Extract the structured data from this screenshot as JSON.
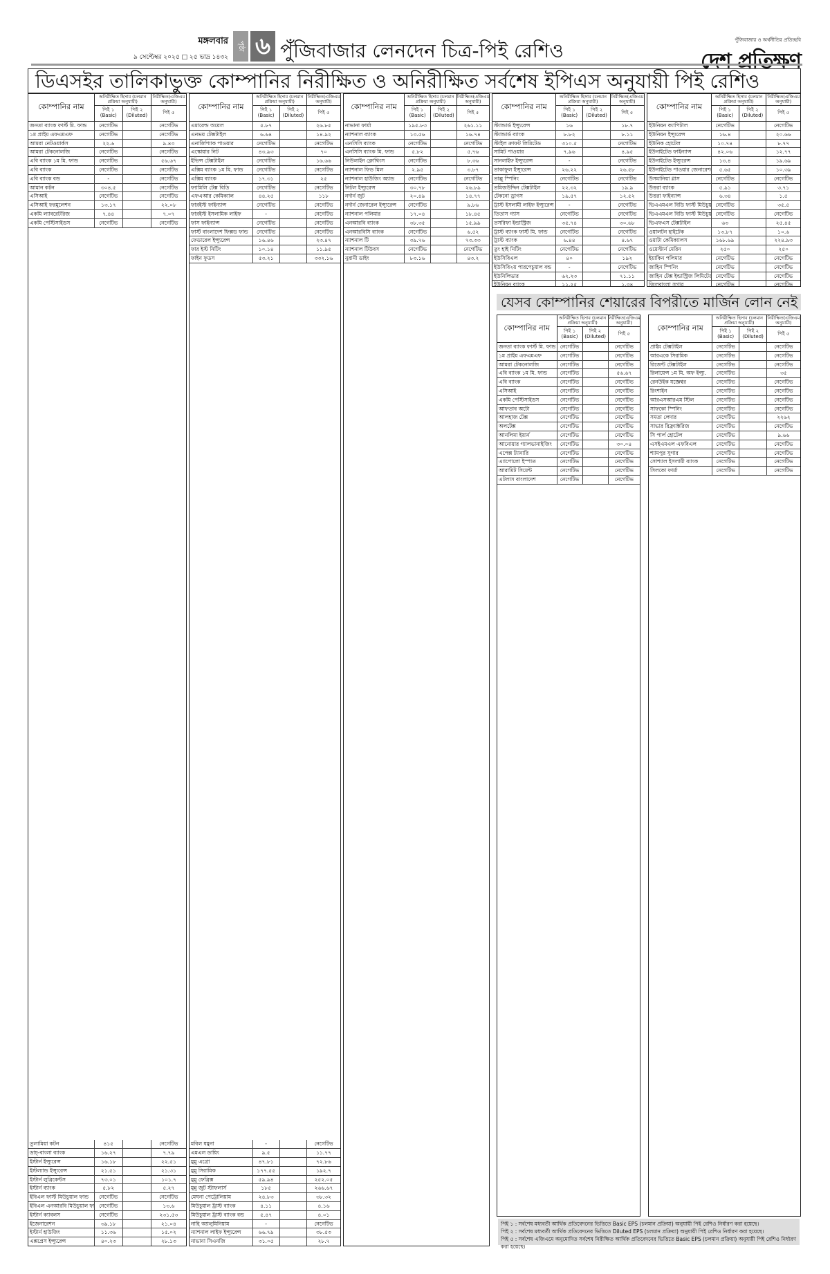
{
  "header": {
    "weekday": "মঙ্গলবার",
    "date": "৯ সেপ্টেম্বর ২০২৫ □ ২৫ ভাদ্র ১৪৩২",
    "page_label": "পৃষ্ঠা",
    "page_number": "৬",
    "page_title": "পুঁজিবাজার লেনদেন চিত্র-পিই রেশিও",
    "logo_tagline": "পুঁজিবাজার ও অর্থনীতির প্রতিচ্ছবি",
    "logo_name": "দেশ প্রতিক্ষণ"
  },
  "main_title": "ডিএসইর তালিকাভুক্ত কোম্পানির নিরীক্ষিত ও অনিরীক্ষিত সর্বশেষ ইপিএস অনুযায়ী পিই রেশিও",
  "section2_title": "যেসব কোম্পানির শেয়ারের বিপরীতে মার্জিন লোন নেই",
  "table_header": {
    "name": "কোম্পানির নাম",
    "unaudited": "অনিরীক্ষিত হিসাব (চলমান প্রক্রিয়া অনুযায়ী)",
    "audited": "নিরীক্ষিত(এজিএম অনুযায়ী)",
    "pe1": "পিই ১ (Basic)",
    "pe2": "পিই ২ (Diluted)",
    "pe5": "পিই ৫"
  },
  "tables": [
    {
      "rows": [
        [
          "জনতা ব্যাংক ফার্স্ট মি. ফান্ড",
          "নেগেটিভ",
          "",
          "নেগেটিভ"
        ],
        [
          "১ম প্রাইম এফএমএফ",
          "নেগেটিভ",
          "",
          "নেগেটিভ"
        ],
        [
          "আমরা নেটওয়ার্কস",
          "২২.৬",
          "",
          "৯.৪৩"
        ],
        [
          "আমরা টেকনোলজি",
          "নেগেটিভ",
          "",
          "নেগেটিভ"
        ],
        [
          "এবি ব্যাংক ১ম মি. ফান্ড",
          "নেগেটিভ",
          "",
          "৫৬.৬৭"
        ],
        [
          "এবি ব্যাংক",
          "নেগেটিভ",
          "",
          "নেগেটিভ"
        ],
        [
          "এবি ব্যাংক বন্ড",
          "-",
          "",
          "নেগেটিভ"
        ],
        [
          "আমান কটন",
          "৩০৪.৫",
          "",
          "নেগেটিভ"
        ],
        [
          "এসিআই",
          "নেগেটিভ",
          "",
          "নেগেটিভ"
        ],
        [
          "এসিআই ফরমুলেশন",
          "১৩.১৭",
          "",
          "২২.০৮"
        ],
        [
          "একমি ল্যাবরেটরিজ",
          "৭.৪৪",
          "",
          "৭.০৭"
        ],
        [
          "একমি পেস্টিসাইডস",
          "নেগেটিভ",
          "",
          "নেগেটিভ"
        ]
      ],
      "tail": [
        [
          "তুলামিয়া কটন",
          "৪১৫",
          "",
          "নেগেটিভ"
        ],
        [
          "ডাচ্-বাংলা ব্যাংক",
          "১৬.২৭",
          "",
          "৭.৭৯"
        ],
        [
          "ইস্টার্ন ইন্স্যুরেন্স",
          "১৬.১৮",
          "",
          "২২.৫১"
        ],
        [
          "ইস্টল্যান্ড ইন্স্যুরেন্স",
          "২১.৫১",
          "",
          "২১.৩১"
        ],
        [
          "ইস্টার্ন লুব্রিকেন্টস",
          "৭৩.০১",
          "",
          "১০১.৭"
        ],
        [
          "ইস্টার্ন ব্যাংক",
          "৫.৮২",
          "",
          "৫.২৭"
        ],
        [
          "ইবিএল ফার্স্ট মিউচুয়াল ফান্ড",
          "নেগেটিভ",
          "",
          "নেগেটিভ"
        ],
        [
          "ইবিএল এনআরবি মিউচুয়াল ফান্ড",
          "নেগেটিভ",
          "",
          "১৩.৬"
        ],
        [
          "ইস্টার্ন ক্যাবলস",
          "নেগেটিভ",
          "",
          "২৩১.৫৩"
        ],
        [
          "ইজেনারেশন",
          "৩৯.১৮",
          "",
          "২১.০৪"
        ],
        [
          "ইস্টার্ন হাউজিং",
          "১১.৩৬",
          "",
          "১৫.০২"
        ],
        [
          "এক্সপ্রেস ইন্স্যুরেন্স",
          "৪০.২৩",
          "",
          "২৮.১৩"
        ]
      ]
    },
    {
      "rows": [
        [
          "এমারেল্ড অয়েল",
          "৫.৮৭",
          "",
          "২৬.৮৫"
        ],
        [
          "এনভয় টেক্সটাইল",
          "৬.৬৪",
          "",
          "১৪.৯২"
        ],
        [
          "এনার্জিপ্যাক পাওয়ার",
          "নেগেটিভ",
          "",
          "নেগেটিভ"
        ],
        [
          "এস্কোয়ার নিট",
          "৪৩.৯৩",
          "",
          "৭০"
        ],
        [
          "ইভিন্স টেক্সটাইল",
          "নেগেটিভ",
          "",
          "১৬.৬৬"
        ],
        [
          "এক্সিম ব্যাংক ১ম মি. ফান্ড",
          "নেগেটিভ",
          "",
          "নেগেটিভ"
        ],
        [
          "এক্সিম ব্যাংক",
          "১৭.৩১",
          "",
          "২৫"
        ],
        [
          "ফ্যামিলি টেক্স বিডি",
          "নেগেটিভ",
          "",
          "নেগেটিভ"
        ],
        [
          "এফএআর কেমিক্যাল",
          "৪৪.২৫",
          "",
          "১১৮"
        ],
        [
          "ফারইস্ট ফাইন্যান্স",
          "নেগেটিভ",
          "",
          "নেগেটিভ"
        ],
        [
          "ফারইস্ট ইসলামিক লাইফ",
          "-",
          "",
          "নেগেটিভ"
        ],
        [
          "ফাস ফাইন্যান্স",
          "নেগেটিভ",
          "",
          "নেগেটিভ"
        ],
        [
          "ফার্স্ট বাংলাদেশ ফিক্সড ফান্ড",
          "নেগেটিভ",
          "",
          "নেগেটিভ"
        ],
        [
          "ফেডারেল ইন্স্যুরেন্স",
          "১৬.৪৬",
          "",
          "২৩.৪৭"
        ],
        [
          "ফার ইস্ট নিটিং",
          "১০.১৪",
          "",
          "১১.৯৫"
        ],
        [
          "ফাইন ফুডস",
          "৫৩.২১",
          "",
          "৩৩২.১৬"
        ]
      ],
      "tail": [
        [
          "মবিল যমুনা",
          "-",
          "",
          "নেগেটিভ"
        ],
        [
          "এমএল ডায়িং",
          "৯.৫",
          "",
          "১১.৭৭"
        ],
        [
          "মুন্নু এগ্রো",
          "৪৭.৮১",
          "",
          "৭২.৮৬"
        ],
        [
          "মুন্নু সিরামিক",
          "১৭৭.৫৫",
          "",
          "১৯২.৭"
        ],
        [
          "মুন্নু ফেব্রিক্স",
          "৫৯.৯৪",
          "",
          "২৫২.০৫"
        ],
        [
          "মুন্নু জুট স্টাফলার্স",
          "১৮৫",
          "",
          "২৬৬.৬৭"
        ],
        [
          "মেঘনা পেট্রোলিয়াম",
          "২৪.৮৩",
          "",
          "৩৮.৩২"
        ],
        [
          "মিউচুয়াল ট্রাস্ট ব্যাংক",
          "৪.১১",
          "",
          "৪.১৬"
        ],
        [
          "মিউচুয়াল ট্রাস্ট ব্যাংক বন্ড",
          "৫.৪৭",
          "",
          "৪.০১"
        ],
        [
          "নাহি অ্যালুমিনিয়াম",
          "-",
          "",
          "নেগেটিভ"
        ],
        [
          "ন্যাশনাল লাইফ ইন্স্যুরেন্স",
          "৬৬.৭৯",
          "",
          "৩৮.৫৩"
        ],
        [
          "নাভানা সিএনজি",
          "৩১.০৫",
          "",
          "২৮.৭"
        ]
      ]
    },
    {
      "rows": [
        [
          "নাভানা ফার্মা",
          "১৯৫.৮৩",
          "",
          "২৬১.১১"
        ],
        [
          "ন্যাশনাল ব্যাংক",
          "১৩.৫৬",
          "",
          "১৬.৭৪"
        ],
        [
          "এনসিসি ব্যাংক",
          "নেগেটিভ",
          "",
          "নেগেটিভ"
        ],
        [
          "এনসিসি ব্যাংক মি. ফান্ড",
          "৫.৮২",
          "",
          "৫.৭৬"
        ],
        [
          "নিউলাইন ক্লোথিংস",
          "নেগেটিভ",
          "",
          "৮.৩৬"
        ],
        [
          "ন্যাশনাল ফিড মিল",
          "২.৯৫",
          "",
          "৩.৮৭"
        ],
        [
          "ন্যাশনাল হাউজিং অ্যান্ড",
          "নেগেটিভ",
          "",
          "নেগেটিভ"
        ],
        [
          "নিটল ইন্স্যুরেন্স",
          "৩০.৭৮",
          "",
          "২৬.৮৯"
        ],
        [
          "নর্দার্ন জুট",
          "২০.৪৯",
          "",
          "১৪.৭৭"
        ],
        [
          "নর্দার্ন জেনারেল ইন্স্যুরেন্স",
          "নেগেটিভ",
          "",
          "৯.৮৬"
        ],
        [
          "ন্যাশনাল পলিমার",
          "১৭.০৪",
          "",
          "১৮.৪৫"
        ],
        [
          "এনআরবি ব্যাংক",
          "৩৮.৩৫",
          "",
          "১৫.৯৯"
        ],
        [
          "এনআরবিসি ব্যাংক",
          "নেগেটিভ",
          "",
          "৬.৫২"
        ],
        [
          "ন্যাশনাল টি",
          "৩৯.৭৬",
          "",
          "৭৩.৩৩"
        ],
        [
          "ন্যাশনাল টিউবস",
          "নেগেটিভ",
          "",
          "নেগেটিভ"
        ],
        [
          "নুরানী ডাইং",
          "৮৩.১৬",
          "",
          "৪৩.২"
        ]
      ],
      "tail": []
    },
    {
      "rows": [
        [
          "স্ট্যান্ডার্ড ইন্স্যুরেন্স",
          "১৬",
          "",
          "১৮.৭"
        ],
        [
          "স্ট্যান্ডার্ড ব্যাংক",
          "৮.৮২",
          "",
          "৮.১১"
        ],
        [
          "স্টাইল ক্রাফট লিমিটেড",
          "৩১০.৫",
          "",
          "নেগেটিভ"
        ],
        [
          "সামিট পাওয়ার",
          "৭.৯৬",
          "",
          "৪.৯৫"
        ],
        [
          "সানলাইফ ইন্স্যুরেন্স",
          "-",
          "",
          "নেগেটিভ"
        ],
        [
          "তাকাফুল ইন্স্যুরেন্স",
          "২৬.২২",
          "",
          "২৬.৫৮"
        ],
        [
          "তাল্লু স্পিনিং",
          "নেগেটিভ",
          "",
          "নেগেটিভ"
        ],
        [
          "তমিজউদ্দিন টেক্সটাইল",
          "২২.৩২",
          "",
          "১৯.৯"
        ],
        [
          "টেকনো ড্রাগস",
          "১৯.৫৭",
          "",
          "১২.৫২"
        ],
        [
          "ট্রাস্ট ইসলামী লাইফ ইন্স্যুরেন্স",
          "-",
          "",
          "নেগেটিভ"
        ],
        [
          "তিতাস গ্যাস",
          "নেগেটিভ",
          "",
          "নেগেটিভ"
        ],
        [
          "তসরিফা ইন্ডাস্ট্রিজ",
          "৩৫.৭৪",
          "",
          "৩০.৬৮"
        ],
        [
          "ট্রাস্ট ব্যাংক ফার্স্ট মি. ফান্ড",
          "নেগেটিভ",
          "",
          "নেগেটিভ"
        ],
        [
          "ট্রাস্ট ব্যাংক",
          "৬.৪৪",
          "",
          "৪.৬৭"
        ],
        [
          "তুং হাই নিটিং",
          "নেগেটিভ",
          "",
          "নেগেটিভ"
        ],
        [
          "ইউসিবিএল",
          "৪০",
          "",
          "১৯২"
        ],
        [
          "ইউসিবি২য় পারপেচুয়াল বন্ড",
          "-",
          "",
          "নেগেটিভ"
        ],
        [
          "ইউনিলিভার",
          "৬২.২৩",
          "",
          "৭১.১১"
        ],
        [
          "ইউনিয়ন ব্যাংক",
          "১১.২৫",
          "",
          "১.৩৪"
        ]
      ],
      "tail": []
    },
    {
      "rows": [
        [
          "ইউনিয়ন ক্যাপিটাল",
          "নেগেটিভ",
          "",
          "নেগেটিভ"
        ],
        [
          "ইউনিয়ন ইন্স্যুরেন্স",
          "১৬.৪",
          "",
          "২০.৬৬"
        ],
        [
          "ইউনিক হোটেল",
          "১০.৭৪",
          "",
          "৮.৭৭"
        ],
        [
          "ইউনাইটেড ফাইন্যান্স",
          "৪২.০৬",
          "",
          "১২.৭৭"
        ],
        [
          "ইউনাইটেড ইন্স্যুরেন্স",
          "১৩.৪",
          "",
          "১৯.৬৯"
        ],
        [
          "ইউনাইটেড পাওয়ার জেনারেশন",
          "৫.৬৫",
          "",
          "১০.৩৯"
        ],
        [
          "উসমানিয়া গ্লাস",
          "নেগেটিভ",
          "",
          "নেগেটিভ"
        ],
        [
          "উত্তরা ব্যাংক",
          "৫.৯১",
          "",
          "৩.৭১"
        ],
        [
          "উত্তরা ফাইন্যান্স",
          "৬.৩৪",
          "",
          "১.৫"
        ],
        [
          "ভিএএমএল বিডি ফার্স্ট মিউচুয়াল ১",
          "নেগেটিভ",
          "",
          "৩৫.৫"
        ],
        [
          "ভিএএমএল বিডি ফার্স্ট মিউচুয়াল ফান্ড",
          "নেগেটিভ",
          "",
          "নেগেটিভ"
        ],
        [
          "ভিএফএস টেক্সটাইল",
          "৬৩",
          "",
          "২৫.৪৫"
        ],
        [
          "ওয়ালটন হাইটেক",
          "১৩.৮৭",
          "",
          "১০.৬"
        ],
        [
          "ওয়াটা কেমিক্যালস",
          "১৬৮.৬৯",
          "",
          "২২৪.৯৩"
        ],
        [
          "ওয়েস্টার্ন মেরিন",
          "২৫০",
          "",
          "২৫০"
        ],
        [
          "ইয়াকিন পলিমার",
          "নেগেটিভ",
          "",
          "নেগেটিভ"
        ],
        [
          "জাহিন স্পিনিং",
          "নেগেটিভ",
          "",
          "নেগেটিভ"
        ],
        [
          "জাহিন টেক্স ইন্ডাস্ট্রিজ লিমিটেড",
          "নেগেটিভ",
          "",
          "নেগেটিভ"
        ],
        [
          "জিলবাংলা সুগার",
          "নেগেটিভ",
          "",
          "নেগেটিভ"
        ]
      ],
      "tail": []
    },
    {
      "rows": [
        [
          "জনতা ব্যাংক ফার্স্ট মি. ফান্ড",
          "নেগেটিভ",
          "",
          "নেগেটিভ"
        ],
        [
          "১ম প্রাইম এফএমএফ",
          "নেগেটিভ",
          "",
          "নেগেটিভ"
        ],
        [
          "আমরা টেকনোলজি",
          "নেগেটিভ",
          "",
          "নেগেটিভ"
        ],
        [
          "এবি ব্যাংক ১ম মি. ফান্ড",
          "নেগেটিভ",
          "",
          "৫৬.৬৭"
        ],
        [
          "এবি ব্যাংক",
          "নেগেটিভ",
          "",
          "নেগেটিভ"
        ],
        [
          "এসিআই",
          "নেগেটিভ",
          "",
          "নেগেটিভ"
        ],
        [
          "একমি পেস্টিসাইডস",
          "নেগেটিভ",
          "",
          "নেগেটিভ"
        ],
        [
          "আফতাব অটো",
          "নেগেটিভ",
          "",
          "নেগেটিভ"
        ],
        [
          "আলহাজ টেক্স",
          "নেগেটিভ",
          "",
          "নেগেটিভ"
        ],
        [
          "অলটেক্স",
          "নেগেটিভ",
          "",
          "নেগেটিভ"
        ],
        [
          "আনলিমা ইয়ার্ন",
          "নেগেটিভ",
          "",
          "নেগেটিভ"
        ],
        [
          "আনোয়ার গ্যালভানাইজিং",
          "নেগেটিভ",
          "",
          "৩০.০৪"
        ],
        [
          "এপেক্স ট্যানারি",
          "নেগেটিভ",
          "",
          "নেগেটিভ"
        ],
        [
          "এ্যাপোলো ইস্পাত",
          "নেগেটিভ",
          "",
          "নেগেটিভ"
        ],
        [
          "আরামিট সিমেন্ট",
          "নেগেটিভ",
          "",
          "নেগেটিভ"
        ],
        [
          "এটলাস বাংলাদেশ",
          "নেগেটিভ",
          "",
          "নেগেটিভ"
        ]
      ],
      "tail": []
    },
    {
      "rows": [
        [
          "প্রাইম টেক্সটাইল",
          "নেগেটিভ",
          "",
          "নেগেটিভ"
        ],
        [
          "আরএকে সিরামিক",
          "নেগেটিভ",
          "",
          "নেগেটিভ"
        ],
        [
          "রিজেন্ট টেক্সটাইল",
          "নেগেটিভ",
          "",
          "নেগেটিভ"
        ],
        [
          "রিলায়েন্স ১ম মি. অফ ইন্স্যু.",
          "নেগেটিভ",
          "",
          "৩৫"
        ],
        [
          "রেনউইক যজ্ঞেশ্বর",
          "নেগেটিভ",
          "",
          "নেগেটিভ"
        ],
        [
          "রিংশাইন",
          "নেগেটিভ",
          "",
          "নেগেটিভ"
        ],
        [
          "আরএসআরএম স্টিল",
          "নেগেটিভ",
          "",
          "নেগেটিভ"
        ],
        [
          "সাফকো স্পিনিং",
          "নেগেটিভ",
          "",
          "নেগেটিভ"
        ],
        [
          "সমতা লেদার",
          "নেগেটিভ",
          "",
          "২২৬২"
        ],
        [
          "সাভার রিফ্র্যাক্টরিজ",
          "নেগেটিভ",
          "",
          "নেগেটিভ"
        ],
        [
          "সি পার্ল হোটেল",
          "নেগেটিভ",
          "",
          "৯.৬৬"
        ],
        [
          "এসইএমএল এফবিএল",
          "নেগেটিভ",
          "",
          "নেগেটিভ"
        ],
        [
          "শ্যামপুর সুগার",
          "নেগেটিভ",
          "",
          "নেগেটিভ"
        ],
        [
          "সোশ্যাল ইসলামী ব্যাংক",
          "নেগেটিভ",
          "",
          "নেগেটিভ"
        ],
        [
          "সিলকো ফার্মা",
          "নেগেটিভ",
          "",
          "নেগেটিভ"
        ]
      ],
      "tail": []
    }
  ],
  "footnotes": [
    "পিই ১ : সর্বশেষ মধ্যবর্তী আর্থিক প্রতিবেদনের ভিত্তিতে Basic EPS (চলমান প্রক্রিয়া) অনুযায়ী পিই রেশিও নির্ধারণ করা হয়েছে।",
    "পিই ২ : সর্বশেষ মধ্যবর্তী আর্থিক প্রতিবেদনের ভিত্তিতে Diluted EPS (চলমান প্রক্রিয়া) অনুযায়ী পিই রেশিও নির্ধারণ করা হয়েছে।",
    "পিই ৫ : সর্বশেষ এজিএমে অনুমোদিত সর্বশেষ নিরীক্ষিত আর্থিক প্রতিবেদনের ভিত্তিতে Basic EPS (চলমান প্রক্রিয়া) অনুযায়ী পিই রেশিও নির্ধারণ করা হয়েছে।"
  ]
}
